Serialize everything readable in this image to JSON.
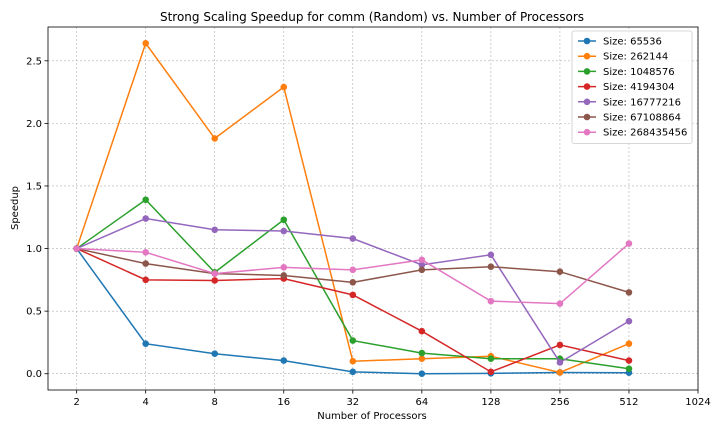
{
  "chart_data": {
    "type": "line",
    "title": "Strong Scaling Speedup for comm (Random) vs. Number of Processors",
    "xlabel": "Number of Processors",
    "ylabel": "Speedup",
    "x_scale": "log2",
    "xlim": [
      1.5,
      1024
    ],
    "ylim": [
      -0.13,
      2.77
    ],
    "x_ticks": [
      2,
      4,
      8,
      16,
      32,
      64,
      128,
      256,
      512,
      1024
    ],
    "y_ticks": [
      0.0,
      0.5,
      1.0,
      1.5,
      2.0,
      2.5
    ],
    "grid": true,
    "legend_position": "top-right",
    "x": [
      2,
      4,
      8,
      16,
      32,
      64,
      128,
      256,
      512
    ],
    "series": [
      {
        "name": "Size: 65536",
        "color": "#1f77b4",
        "values": [
          1.0,
          0.24,
          0.16,
          0.105,
          0.015,
          0.0,
          0.003,
          0.01,
          0.008
        ]
      },
      {
        "name": "Size: 262144",
        "color": "#ff7f0e",
        "values": [
          1.0,
          2.64,
          1.88,
          2.29,
          0.1,
          0.12,
          0.14,
          0.01,
          0.24
        ]
      },
      {
        "name": "Size: 1048576",
        "color": "#2ca02c",
        "values": [
          1.0,
          1.39,
          0.81,
          1.23,
          0.265,
          0.165,
          0.12,
          0.12,
          0.04
        ]
      },
      {
        "name": "Size: 4194304",
        "color": "#d62728",
        "values": [
          1.0,
          0.75,
          0.745,
          0.76,
          0.63,
          0.34,
          0.015,
          0.23,
          0.105
        ]
      },
      {
        "name": "Size: 16777216",
        "color": "#9467bd",
        "values": [
          1.0,
          1.24,
          1.15,
          1.14,
          1.08,
          0.87,
          0.95,
          0.09,
          0.42
        ]
      },
      {
        "name": "Size: 67108864",
        "color": "#8c564b",
        "values": [
          1.0,
          0.88,
          0.8,
          0.785,
          0.73,
          0.83,
          0.855,
          0.815,
          0.65
        ]
      },
      {
        "name": "Size: 268435456",
        "color": "#e377c2",
        "values": [
          1.0,
          0.97,
          0.8,
          0.85,
          0.83,
          0.91,
          0.58,
          0.56,
          1.04
        ]
      }
    ]
  }
}
